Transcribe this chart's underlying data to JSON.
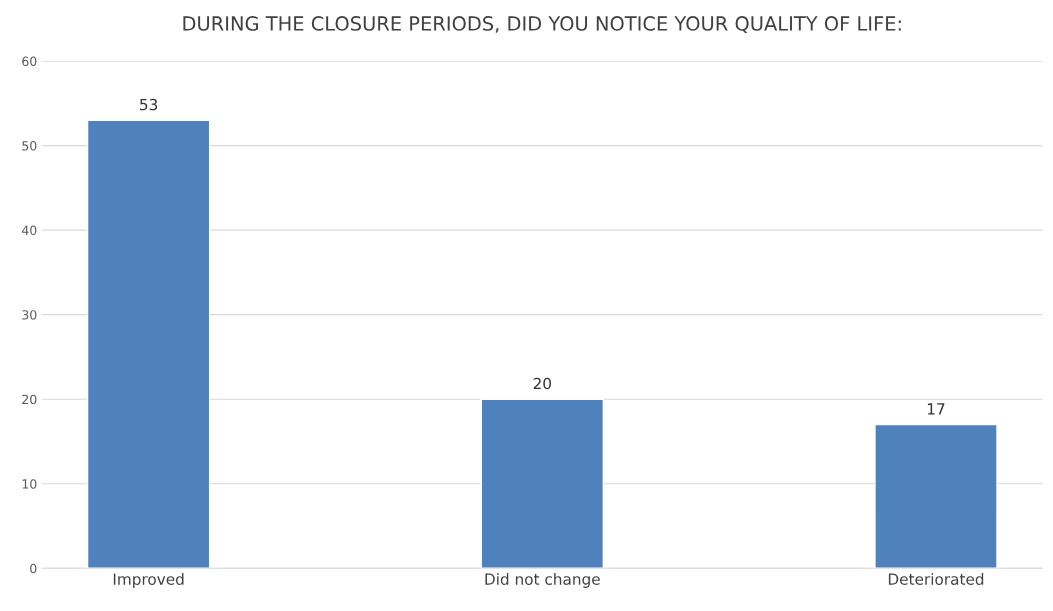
{
  "chart_data": {
    "type": "bar",
    "title": "DURING THE CLOSURE PERIODS, DID YOU NOTICE YOUR QUALITY OF LIFE:",
    "categories": [
      "Improved",
      "Did not change",
      "Deteriorated"
    ],
    "values": [
      53,
      20,
      17
    ],
    "color": "#4f81bd",
    "ylim": [
      0,
      60
    ],
    "yticks": [
      0,
      10,
      20,
      30,
      40,
      50,
      60
    ],
    "grid": "y",
    "data_labels": true
  }
}
